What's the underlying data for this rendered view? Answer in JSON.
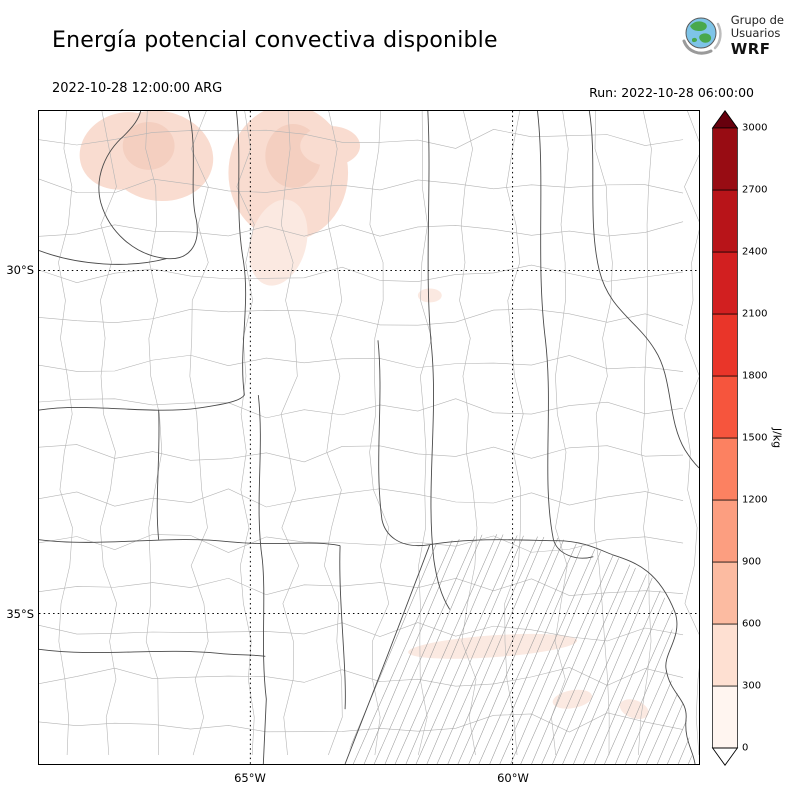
{
  "header": {
    "title": "Energía potencial convectiva disponible",
    "valid_time": "2022-10-28 12:00:00 ARG",
    "run_label": "Run: 2022-10-28 06:00:00",
    "logo": {
      "line1": "Grupo de",
      "line2": "Usuarios",
      "line3": "WRF"
    }
  },
  "map": {
    "lat_ticks": [
      {
        "label": "30°S"
      },
      {
        "label": "35°S"
      }
    ],
    "lon_ticks": [
      {
        "label": "65°W"
      },
      {
        "label": "60°W"
      }
    ]
  },
  "colorbar": {
    "unit": "J/kg",
    "ticks": [
      "0",
      "300",
      "600",
      "900",
      "1200",
      "1500",
      "1800",
      "2100",
      "2400",
      "2700",
      "3000"
    ],
    "segment_colors": [
      "#fff5f0",
      "#fee0d2",
      "#fcbba1",
      "#fc9e80",
      "#fc8161",
      "#f6553d",
      "#e93529",
      "#d21f20",
      "#b81419",
      "#980c13"
    ],
    "under_color": "#ffffff",
    "over_color": "#67000d",
    "outline_color": "#000000"
  },
  "chart_data": {
    "type": "heatmap",
    "title": "Energía potencial convectiva disponible",
    "variable": "CAPE (convective available potential energy)",
    "unit": "J/kg",
    "valid_time": "2022-10-28 12:00:00 ARG",
    "run_time": "2022-10-28 06:00:00",
    "levels": [
      0,
      300,
      600,
      900,
      1200,
      1500,
      1800,
      2100,
      2400,
      2700,
      3000
    ],
    "lat_gridlines_deg_s": [
      30,
      35
    ],
    "lon_gridlines_deg_w": [
      65,
      60
    ],
    "observed_values": [
      {
        "region": "northwest of domain (≈28–30°S, 63.5–66.5°W)",
        "cape_j_per_kg": "0–300"
      },
      {
        "region": "small patches near 35–36°S over Buenos Aires area",
        "cape_j_per_kg": "0–300"
      },
      {
        "region": "rest of domain",
        "cape_j_per_kg": "≈0"
      }
    ]
  }
}
